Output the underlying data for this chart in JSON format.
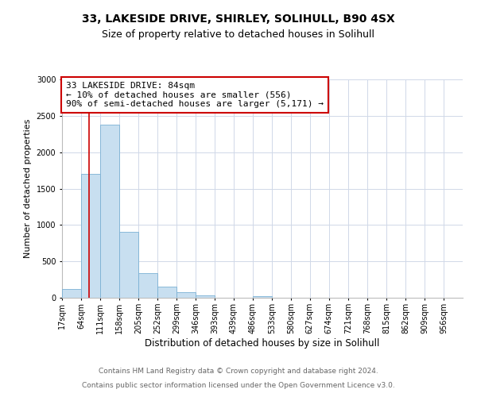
{
  "title1": "33, LAKESIDE DRIVE, SHIRLEY, SOLIHULL, B90 4SX",
  "title2": "Size of property relative to detached houses in Solihull",
  "xlabel": "Distribution of detached houses by size in Solihull",
  "ylabel": "Number of detached properties",
  "bar_values": [
    120,
    1700,
    2380,
    910,
    340,
    155,
    80,
    30,
    0,
    0,
    25,
    0,
    0,
    0,
    0,
    0,
    0,
    0,
    0,
    0
  ],
  "bar_labels": [
    "17sqm",
    "64sqm",
    "111sqm",
    "158sqm",
    "205sqm",
    "252sqm",
    "299sqm",
    "346sqm",
    "393sqm",
    "439sqm",
    "486sqm",
    "533sqm",
    "580sqm",
    "627sqm",
    "674sqm",
    "721sqm",
    "768sqm",
    "815sqm",
    "862sqm",
    "909sqm",
    "956sqm"
  ],
  "bar_color": "#c8dff0",
  "bar_edge_color": "#7ab0d4",
  "annotation_box_text": "33 LAKESIDE DRIVE: 84sqm\n← 10% of detached houses are smaller (556)\n90% of semi-detached houses are larger (5,171) →",
  "annotation_box_color": "#ffffff",
  "annotation_box_edge_color": "#cc0000",
  "red_line_x": 84,
  "ylim": [
    0,
    3000
  ],
  "yticks": [
    0,
    500,
    1000,
    1500,
    2000,
    2500,
    3000
  ],
  "footer1": "Contains HM Land Registry data © Crown copyright and database right 2024.",
  "footer2": "Contains public sector information licensed under the Open Government Licence v3.0.",
  "bg_color": "#ffffff",
  "grid_color": "#d0d8e8",
  "title1_fontsize": 10,
  "title2_fontsize": 9,
  "xlabel_fontsize": 8.5,
  "ylabel_fontsize": 8,
  "tick_fontsize": 7,
  "ann_fontsize": 8,
  "footer_fontsize": 6.5,
  "bin_edges": [
    17,
    64,
    111,
    158,
    205,
    252,
    299,
    346,
    393,
    439,
    486,
    533,
    580,
    627,
    674,
    721,
    768,
    815,
    862,
    909,
    956
  ]
}
